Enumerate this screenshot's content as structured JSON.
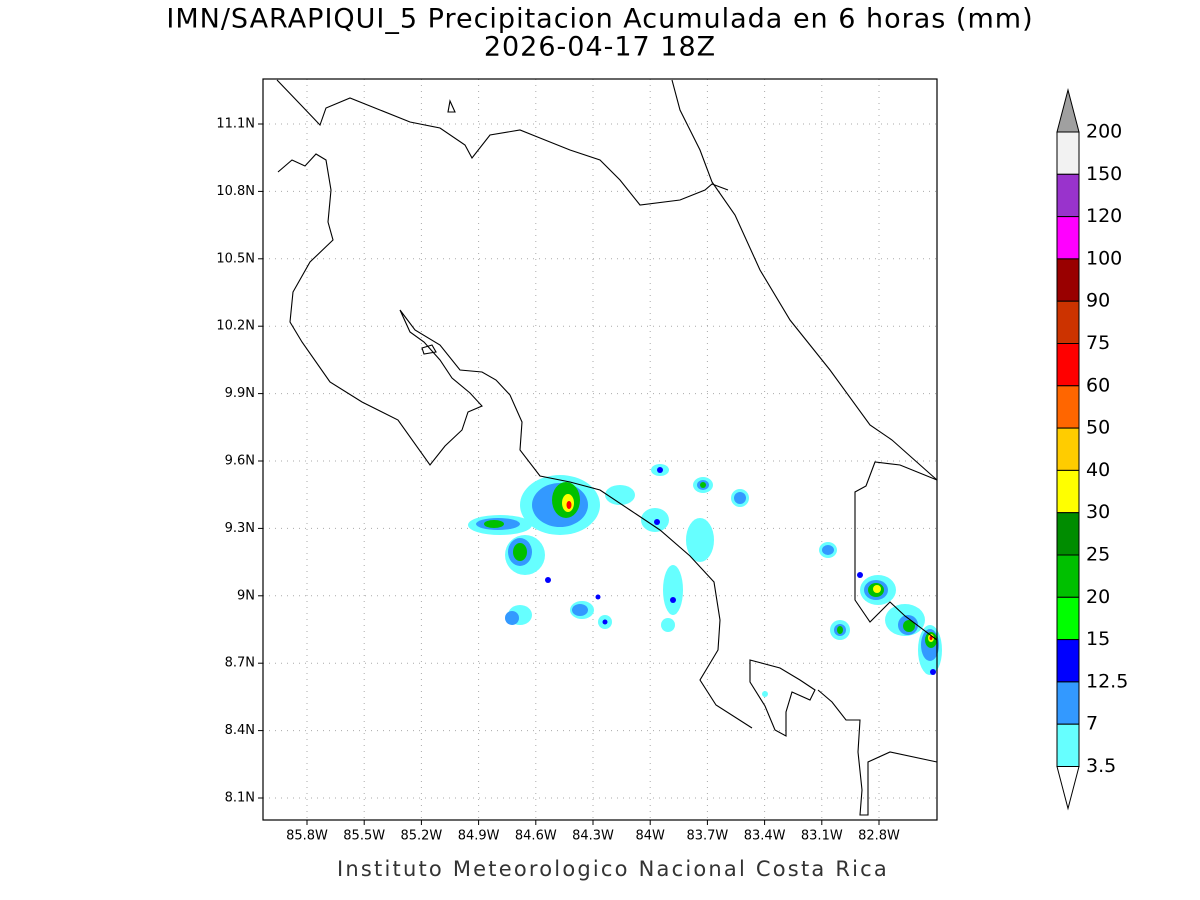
{
  "header": {
    "title": "IMN/SARAPIQUI_5 Precipitacion Acumulada en 6 horas (mm)",
    "subtitle": "2026-04-17 18Z"
  },
  "map": {
    "lon_labels": [
      "85.8W",
      "85.5W",
      "85.2W",
      "84.9W",
      "84.6W",
      "84.3W",
      "84W",
      "83.7W",
      "83.4W",
      "83.1W",
      "82.8W"
    ],
    "lat_labels": [
      "11.1N",
      "10.8N",
      "10.5N",
      "10.2N",
      "9.9N",
      "9.6N",
      "9.3N",
      "9N",
      "8.7N",
      "8.4N",
      "8.1N"
    ]
  },
  "legend": {
    "labels": [
      200,
      150,
      120,
      100,
      90,
      75,
      60,
      50,
      40,
      30,
      25,
      20,
      15,
      12.5,
      7,
      3.5
    ],
    "colors": [
      "#a0a0a0",
      "#f2f2f2",
      "#9933cc",
      "#ff00ff",
      "#990000",
      "#cc3300",
      "#ff0000",
      "#ff6600",
      "#ffcc00",
      "#ffff00",
      "#008c00",
      "#00c000",
      "#00ff00",
      "#0000ff",
      "#3399ff",
      "#66ffff",
      "#ffffff"
    ]
  },
  "footer": "Instituto Meteorologico Nacional Costa Rica"
}
